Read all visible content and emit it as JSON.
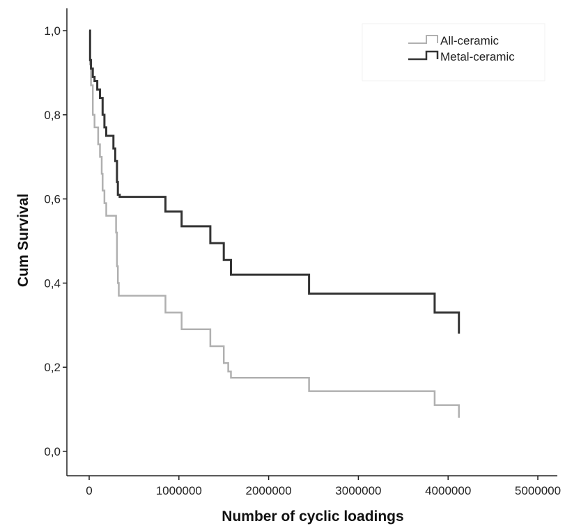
{
  "chart_data": {
    "type": "line",
    "step": true,
    "xlabel": "Number of cyclic loadings",
    "ylabel": "Cum Survival",
    "xlim": [
      0,
      5000000
    ],
    "ylim": [
      0,
      1
    ],
    "x_ticks": [
      0,
      1000000,
      2000000,
      3000000,
      4000000,
      5000000
    ],
    "x_tick_labels": [
      "0",
      "1000000",
      "2000000",
      "3000000",
      "4000000",
      "5000000"
    ],
    "y_ticks": [
      0,
      0.2,
      0.4,
      0.6,
      0.8,
      1.0
    ],
    "y_tick_labels": [
      "0,0",
      "0,2",
      "0,4",
      "0,6",
      "0,8",
      "1,0"
    ],
    "grid": false,
    "legend_position": "top-right",
    "series": [
      {
        "name": "All-ceramic",
        "color": "#b0b0b0",
        "x": [
          0,
          10000,
          20000,
          40000,
          60000,
          100000,
          120000,
          140000,
          150000,
          170000,
          190000,
          230000,
          300000,
          310000,
          320000,
          330000,
          850000,
          1030000,
          1350000,
          1500000,
          1550000,
          1580000,
          2450000,
          3850000,
          4120000
        ],
        "y": [
          1.0,
          0.92,
          0.87,
          0.8,
          0.77,
          0.73,
          0.7,
          0.66,
          0.62,
          0.59,
          0.56,
          0.56,
          0.52,
          0.44,
          0.4,
          0.37,
          0.33,
          0.29,
          0.25,
          0.21,
          0.19,
          0.175,
          0.143,
          0.11,
          0.08
        ]
      },
      {
        "name": "Metal-ceramic",
        "color": "#333333",
        "x": [
          0,
          10000,
          20000,
          40000,
          60000,
          90000,
          120000,
          150000,
          170000,
          190000,
          270000,
          290000,
          310000,
          320000,
          340000,
          850000,
          1030000,
          1350000,
          1500000,
          1580000,
          2450000,
          3850000,
          4120000
        ],
        "y": [
          1.0,
          0.93,
          0.91,
          0.89,
          0.88,
          0.86,
          0.84,
          0.8,
          0.77,
          0.75,
          0.72,
          0.69,
          0.64,
          0.61,
          0.605,
          0.57,
          0.535,
          0.495,
          0.455,
          0.42,
          0.375,
          0.33,
          0.28
        ]
      }
    ]
  }
}
